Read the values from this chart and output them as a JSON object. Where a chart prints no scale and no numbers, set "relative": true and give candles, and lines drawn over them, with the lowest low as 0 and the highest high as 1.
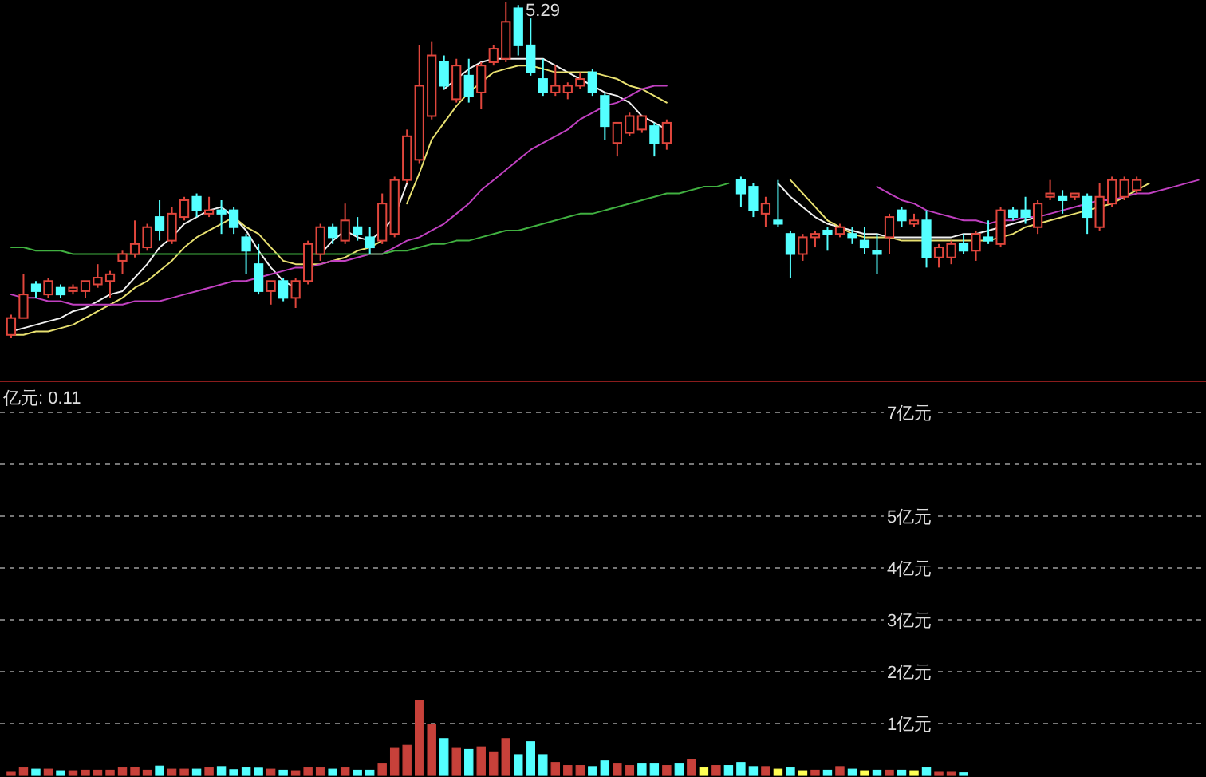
{
  "chart_data": [
    {
      "type": "candlestick",
      "relative": true,
      "categories": [
        null,
        null,
        null,
        null,
        null,
        null,
        null,
        null,
        null,
        null,
        null,
        null,
        null,
        null,
        null,
        null,
        null,
        null,
        null,
        null,
        null,
        null,
        null,
        null,
        null,
        null,
        null,
        null,
        null,
        null,
        null,
        null,
        null,
        null,
        null,
        null,
        null,
        null,
        null,
        null,
        null,
        null,
        null,
        null,
        null,
        null,
        null,
        null,
        null,
        null,
        null,
        null,
        null,
        null,
        null,
        null,
        null,
        null,
        null,
        null,
        null,
        null,
        null,
        null,
        null,
        null,
        null,
        null,
        null,
        null,
        null,
        null,
        null,
        null,
        null,
        null,
        null,
        null,
        null,
        null,
        null,
        null,
        null,
        null,
        null,
        null,
        null,
        null,
        null,
        null,
        null,
        null,
        null,
        null,
        null,
        null,
        null
      ],
      "ohlc": [
        [
          0.01,
          0.07,
          0,
          0.06
        ],
        [
          0.06,
          0.19,
          0.06,
          0.13
        ],
        [
          0.16,
          0.17,
          0.12,
          0.14
        ],
        [
          0.13,
          0.18,
          0.12,
          0.17
        ],
        [
          0.15,
          0.16,
          0.12,
          0.13
        ],
        [
          0.14,
          0.16,
          0.13,
          0.15
        ],
        [
          0.14,
          0.17,
          0.12,
          0.17
        ],
        [
          0.16,
          0.22,
          0.15,
          0.18
        ],
        [
          0.17,
          0.2,
          0.12,
          0.19
        ],
        [
          0.23,
          0.26,
          0.19,
          0.25
        ],
        [
          0.25,
          0.35,
          0.24,
          0.28
        ],
        [
          0.27,
          0.34,
          0.26,
          0.33
        ],
        [
          0.36,
          0.41,
          0.29,
          0.32
        ],
        [
          0.29,
          0.39,
          0.28,
          0.37
        ],
        [
          0.36,
          0.42,
          0.35,
          0.41
        ],
        [
          0.42,
          0.43,
          0.36,
          0.38
        ],
        [
          0.37,
          0.42,
          0.36,
          0.38
        ],
        [
          0.38,
          0.41,
          0.31,
          0.37
        ],
        [
          0.38,
          0.39,
          0.31,
          0.33
        ],
        [
          0.3,
          0.31,
          0.19,
          0.26
        ],
        [
          0.22,
          0.28,
          0.13,
          0.14
        ],
        [
          0.14,
          0.17,
          0.1,
          0.17
        ],
        [
          0.17,
          0.18,
          0.11,
          0.12
        ],
        [
          0.12,
          0.18,
          0.09,
          0.17
        ],
        [
          0.17,
          0.29,
          0.16,
          0.28
        ],
        [
          0.25,
          0.34,
          0.23,
          0.33
        ],
        [
          0.33,
          0.34,
          0.28,
          0.3
        ],
        [
          0.29,
          0.4,
          0.28,
          0.35
        ],
        [
          0.33,
          0.36,
          0.29,
          0.31
        ],
        [
          0.3,
          0.33,
          0.25,
          0.27
        ],
        [
          0.29,
          0.43,
          0.28,
          0.4
        ],
        [
          0.31,
          0.48,
          0.3,
          0.47
        ],
        [
          0.47,
          0.62,
          0.46,
          0.6
        ],
        [
          0.53,
          0.87,
          0.52,
          0.75
        ],
        [
          0.66,
          0.88,
          0.65,
          0.84
        ],
        [
          0.82,
          0.84,
          0.74,
          0.75
        ],
        [
          0.71,
          0.83,
          0.7,
          0.81
        ],
        [
          0.78,
          0.83,
          0.7,
          0.72
        ],
        [
          0.73,
          0.82,
          0.68,
          0.81
        ],
        [
          0.82,
          0.87,
          0.81,
          0.86
        ],
        [
          0.83,
          1,
          0.82,
          0.94
        ],
        [
          0.98,
          0.99,
          0.84,
          0.87
        ],
        [
          0.87,
          0.95,
          0.78,
          0.79
        ],
        [
          0.77,
          0.83,
          0.72,
          0.73
        ],
        [
          0.73,
          0.81,
          0.72,
          0.75
        ],
        [
          0.73,
          0.76,
          0.71,
          0.75
        ],
        [
          0.75,
          0.79,
          0.74,
          0.77
        ],
        [
          0.79,
          0.8,
          0.72,
          0.73
        ],
        [
          0.72,
          0.73,
          0.59,
          0.63
        ],
        [
          0.58,
          0.64,
          0.54,
          0.64
        ],
        [
          0.61,
          0.67,
          0.6,
          0.66
        ],
        [
          0.62,
          0.66,
          0.61,
          0.66
        ],
        [
          0.63,
          0.64,
          0.54,
          0.58
        ],
        [
          0.58,
          0.65,
          0.56,
          0.64
        ],
        null,
        null,
        null,
        null,
        null,
        [
          0.47,
          0.48,
          0.39,
          0.43
        ],
        [
          0.45,
          0.46,
          0.36,
          0.38
        ],
        [
          0.37,
          0.42,
          0.33,
          0.4
        ],
        [
          0.35,
          0.47,
          0.33,
          0.34
        ],
        [
          0.31,
          0.32,
          0.18,
          0.25
        ],
        [
          0.25,
          0.31,
          0.23,
          0.3
        ],
        [
          0.3,
          0.32,
          0.27,
          0.31
        ],
        [
          0.32,
          0.33,
          0.26,
          0.31
        ],
        [
          0.31,
          0.34,
          0.3,
          0.33
        ],
        [
          0.31,
          0.33,
          0.28,
          0.3
        ],
        [
          0.29,
          0.33,
          0.25,
          0.27
        ],
        [
          0.26,
          0.31,
          0.19,
          0.25
        ],
        [
          0.3,
          0.37,
          0.25,
          0.36
        ],
        [
          0.38,
          0.39,
          0.33,
          0.35
        ],
        [
          0.34,
          0.37,
          0.33,
          0.35
        ],
        [
          0.35,
          0.38,
          0.21,
          0.24
        ],
        [
          0.24,
          0.28,
          0.21,
          0.27
        ],
        [
          0.24,
          0.29,
          0.22,
          0.28
        ],
        [
          0.28,
          0.31,
          0.25,
          0.26
        ],
        [
          0.26,
          0.32,
          0.23,
          0.31
        ],
        [
          0.3,
          0.35,
          0.28,
          0.29
        ],
        [
          0.28,
          0.39,
          0.27,
          0.38
        ],
        [
          0.38,
          0.39,
          0.35,
          0.36
        ],
        [
          0.38,
          0.42,
          0.34,
          0.36
        ],
        [
          0.33,
          0.41,
          0.31,
          0.4
        ],
        [
          0.42,
          0.47,
          0.41,
          0.43
        ],
        [
          0.42,
          0.44,
          0.37,
          0.41
        ],
        [
          0.42,
          0.43,
          0.41,
          0.43
        ],
        [
          0.42,
          0.43,
          0.31,
          0.36
        ],
        [
          0.33,
          0.46,
          0.32,
          0.42
        ],
        [
          0.4,
          0.48,
          0.39,
          0.47
        ],
        [
          0.42,
          0.48,
          0.41,
          0.47
        ],
        [
          0.44,
          0.48,
          0.43,
          0.47
        ],
        null,
        null,
        null,
        null,
        null
      ],
      "colors": [
        "#e0463c",
        "#e0463c",
        "#54ffff",
        "#e0463c",
        "#54ffff",
        "#e0463c",
        "#e0463c",
        "#e0463c",
        "#e0463c",
        "#e0463c",
        "#e0463c",
        "#e0463c",
        "#54ffff",
        "#e0463c",
        "#e0463c",
        "#54ffff",
        "#e0463c",
        "#54ffff",
        "#54ffff",
        "#54ffff",
        "#54ffff",
        "#e0463c",
        "#54ffff",
        "#e0463c",
        "#e0463c",
        "#e0463c",
        "#54ffff",
        "#e0463c",
        "#54ffff",
        "#54ffff",
        "#e0463c",
        "#e0463c",
        "#e0463c",
        "#e0463c",
        "#e0463c",
        "#54ffff",
        "#e0463c",
        "#54ffff",
        "#e0463c",
        "#e0463c",
        "#e0463c",
        "#54ffff",
        "#54ffff",
        "#54ffff",
        "#e0463c",
        "#e0463c",
        "#e0463c",
        "#54ffff",
        "#54ffff",
        "#e0463c",
        "#e0463c",
        "#e0463c",
        "#54ffff",
        "#e0463c",
        null,
        null,
        null,
        null,
        null,
        "#54ffff",
        "#54ffff",
        "#e0463c",
        "#54ffff",
        "#54ffff",
        "#e0463c",
        "#e0463c",
        "#54ffff",
        "#e0463c",
        "#54ffff",
        "#54ffff",
        "#54ffff",
        "#e0463c",
        "#54ffff",
        "#e0463c",
        "#54ffff",
        "#e0463c",
        "#e0463c",
        "#54ffff",
        "#e0463c",
        "#54ffff",
        "#e0463c",
        "#54ffff",
        "#54ffff",
        "#e0463c",
        "#e0463c",
        "#54ffff",
        "#e0463c",
        "#54ffff",
        "#e0463c",
        "#e0463c",
        "#e0463c",
        "#e0463c",
        null,
        null,
        null,
        null,
        null
      ],
      "series": [
        {
          "type": "line",
          "color": "#f0f0f0",
          "values": [
            0.02,
            0.03,
            0.04,
            0.05,
            0.06,
            0.08,
            0.09,
            0.11,
            0.13,
            0.14,
            0.18,
            0.22,
            0.27,
            0.3,
            0.34,
            0.36,
            0.38,
            0.39,
            0.36,
            0.32,
            0.26,
            0.21,
            0.17,
            0.15,
            null,
            0.25,
            0.29,
            0.32,
            0.3,
            0.29,
            0.32,
            0.36,
            0.46,
            null,
            null,
            0.74,
            0.77,
            0.8,
            0.82,
            0.83,
            0.83,
            0.83,
            0.83,
            0.83,
            0.81,
            0.79,
            0.77,
            0.75,
            0.73,
            0.72,
            0.7,
            0.66,
            0.64,
            0.62,
            null,
            null,
            null,
            null,
            null,
            null,
            null,
            null,
            0.46,
            0.42,
            0.39,
            0.36,
            0.34,
            0.33,
            0.32,
            0.31,
            0.31,
            0.3,
            0.3,
            0.3,
            0.3,
            0.3,
            0.3,
            0.31,
            0.31,
            0.32,
            0.33,
            0.34,
            0.35,
            0.36,
            null,
            null,
            null,
            null,
            null,
            null,
            null,
            null,
            null,
            null,
            null,
            null,
            null
          ]
        },
        {
          "type": "line",
          "color": "#e8e070",
          "values": [
            0.01,
            0.01,
            0.02,
            0.02,
            0.03,
            0.04,
            0.06,
            0.08,
            0.1,
            0.12,
            0.15,
            0.17,
            0.2,
            0.23,
            0.27,
            0.3,
            0.32,
            0.34,
            0.36,
            0.33,
            0.31,
            0.27,
            0.23,
            0.22,
            0.22,
            0.22,
            0.23,
            0.24,
            0.26,
            0.27,
            0.29,
            null,
            0.4,
            0.49,
            0.59,
            0.64,
            0.69,
            0.73,
            0.76,
            0.79,
            0.8,
            0.81,
            0.81,
            0.8,
            0.79,
            0.79,
            0.79,
            0.79,
            0.78,
            0.77,
            0.75,
            0.74,
            0.72,
            0.7,
            null,
            null,
            null,
            null,
            null,
            null,
            null,
            null,
            null,
            0.47,
            0.43,
            0.39,
            0.35,
            0.33,
            0.31,
            0.3,
            0.3,
            0.3,
            0.29,
            0.29,
            0.29,
            0.29,
            0.29,
            0.29,
            0.29,
            0.29,
            0.3,
            0.31,
            0.33,
            0.34,
            0.35,
            0.36,
            0.37,
            0.38,
            0.39,
            0.4,
            0.42,
            0.44,
            0.46,
            null,
            null,
            null,
            null
          ]
        },
        {
          "type": "line",
          "color": "#c040c0",
          "values": [
            0.13,
            0.12,
            0.12,
            0.11,
            0.11,
            0.1,
            0.1,
            0.1,
            0.1,
            0.1,
            0.11,
            0.11,
            0.11,
            0.12,
            0.13,
            0.14,
            0.15,
            0.16,
            0.17,
            0.17,
            0.18,
            0.19,
            0.2,
            0.21,
            0.21,
            0.22,
            0.23,
            0.23,
            0.24,
            0.25,
            0.25,
            0.27,
            0.29,
            0.3,
            0.32,
            0.34,
            0.37,
            0.4,
            0.44,
            0.47,
            0.5,
            0.53,
            0.56,
            0.58,
            0.6,
            0.62,
            0.65,
            0.67,
            0.69,
            0.7,
            0.72,
            0.74,
            0.75,
            0.75,
            null,
            null,
            null,
            null,
            null,
            null,
            null,
            null,
            null,
            null,
            null,
            null,
            null,
            null,
            null,
            null,
            0.45,
            0.43,
            0.41,
            0.4,
            0.38,
            0.37,
            0.36,
            0.35,
            0.35,
            0.34,
            0.35,
            0.35,
            0.36,
            0.36,
            0.37,
            0.38,
            0.39,
            0.4,
            0.41,
            0.41,
            0.42,
            0.43,
            0.43,
            0.44,
            0.45,
            0.46,
            0.47
          ]
        },
        {
          "type": "line",
          "color": "#40b040",
          "values": [
            0.27,
            0.27,
            0.26,
            0.26,
            0.26,
            0.25,
            0.25,
            0.25,
            0.25,
            0.25,
            0.25,
            0.25,
            0.25,
            0.25,
            0.25,
            0.25,
            0.25,
            0.25,
            0.25,
            0.25,
            0.25,
            0.25,
            0.25,
            0.25,
            0.25,
            0.25,
            0.25,
            0.25,
            0.25,
            0.25,
            0.25,
            0.26,
            0.26,
            0.27,
            0.28,
            0.28,
            0.29,
            0.29,
            0.3,
            0.31,
            0.32,
            0.32,
            0.33,
            0.34,
            0.35,
            0.36,
            0.37,
            0.37,
            0.38,
            0.39,
            0.4,
            0.41,
            0.42,
            0.43,
            0.43,
            0.44,
            0.45,
            0.45,
            0.46,
            null,
            null,
            null,
            null,
            null,
            null,
            null,
            null,
            null,
            null,
            null,
            null,
            null,
            null,
            null,
            null,
            null,
            null,
            null,
            null,
            null,
            null,
            null,
            null,
            null,
            null,
            null,
            null,
            null,
            null,
            null,
            null,
            null,
            null,
            null,
            null,
            null,
            null
          ]
        }
      ],
      "annotations": [
        "5.29"
      ]
    },
    {
      "type": "bar",
      "categories": [
        null,
        null,
        null,
        null,
        null,
        null,
        null,
        null,
        null,
        null,
        null,
        null,
        null,
        null,
        null,
        null,
        null,
        null,
        null,
        null,
        null,
        null,
        null,
        null,
        null,
        null,
        null,
        null,
        null,
        null,
        null,
        null,
        null,
        null,
        null,
        null,
        null,
        null,
        null,
        null,
        null,
        null,
        null,
        null,
        null,
        null,
        null,
        null,
        null,
        null,
        null,
        null,
        null,
        null,
        null,
        null,
        null,
        null,
        null,
        null,
        null,
        null,
        null,
        null,
        null,
        null,
        null,
        null,
        null,
        null,
        null,
        null,
        null,
        null,
        null,
        null,
        null,
        null,
        null,
        null,
        null,
        null,
        null,
        null,
        null,
        null,
        null,
        null,
        null,
        null,
        null,
        null,
        null,
        null,
        null,
        null,
        null
      ],
      "values": [
        0.06,
        0.15,
        0.12,
        0.12,
        0.09,
        0.09,
        0.1,
        0.1,
        0.1,
        0.15,
        0.16,
        0.1,
        0.18,
        0.12,
        0.12,
        0.12,
        0.15,
        0.17,
        0.11,
        0.15,
        0.14,
        0.12,
        0.1,
        0.09,
        0.15,
        0.15,
        0.12,
        0.15,
        0.1,
        0.1,
        0.22,
        0.52,
        0.58,
        1.45,
        0.98,
        0.71,
        0.52,
        0.5,
        0.55,
        0.44,
        0.71,
        0.4,
        0.65,
        0.4,
        0.25,
        0.19,
        0.19,
        0.17,
        0.28,
        0.22,
        0.19,
        0.22,
        0.22,
        0.19,
        0.22,
        0.3,
        0.15,
        0.19,
        0.19,
        0.25,
        0.17,
        0.17,
        0.12,
        0.15,
        0.09,
        0.1,
        0.1,
        0.17,
        0.12,
        0.09,
        0.1,
        0.1,
        0.1,
        0.09,
        0.15,
        0.06,
        0.06,
        0.05,
        null,
        null,
        null,
        null,
        null,
        null,
        null,
        null,
        null,
        null,
        null,
        null,
        null,
        null,
        null,
        null,
        null,
        null,
        null
      ],
      "colors": [
        "#c8413a",
        "#c8413a",
        "#54ffff",
        "#c8413a",
        "#54ffff",
        "#c8413a",
        "#c8413a",
        "#c8413a",
        "#c8413a",
        "#c8413a",
        "#c8413a",
        "#c8413a",
        "#54ffff",
        "#c8413a",
        "#c8413a",
        "#54ffff",
        "#c8413a",
        "#54ffff",
        "#54ffff",
        "#54ffff",
        "#54ffff",
        "#c8413a",
        "#54ffff",
        "#c8413a",
        "#c8413a",
        "#c8413a",
        "#54ffff",
        "#c8413a",
        "#54ffff",
        "#54ffff",
        "#c8413a",
        "#c8413a",
        "#c8413a",
        "#c8413a",
        "#c8413a",
        "#54ffff",
        "#c8413a",
        "#54ffff",
        "#c8413a",
        "#c8413a",
        "#c8413a",
        "#54ffff",
        "#54ffff",
        "#54ffff",
        "#c8413a",
        "#c8413a",
        "#c8413a",
        "#54ffff",
        "#54ffff",
        "#c8413a",
        "#c8413a",
        "#54ffff",
        "#54ffff",
        "#c8413a",
        "#54ffff",
        "#c8413a",
        "#ffff54",
        "#c8413a",
        "#54ffff",
        "#54ffff",
        "#54ffff",
        "#c8413a",
        "#ffff54",
        "#54ffff",
        "#ffff54",
        "#c8413a",
        "#54ffff",
        "#c8413a",
        "#54ffff",
        "#ffff54",
        "#54ffff",
        "#c8413a",
        "#54ffff",
        "#ffff54",
        "#54ffff",
        "#c8413a",
        "#c8413a",
        "#54ffff",
        null,
        null,
        null,
        null,
        null,
        null,
        null,
        null,
        null,
        null,
        null,
        null,
        null,
        null,
        null,
        null,
        null,
        null,
        null
      ],
      "ylim": [
        0,
        7.6
      ],
      "yticks": [
        {
          "value": 1,
          "label": "1亿元"
        },
        {
          "value": 2,
          "label": "2亿元"
        },
        {
          "value": 3,
          "label": "3亿元"
        },
        {
          "value": 4,
          "label": "4亿元"
        },
        {
          "value": 5,
          "label": "5亿元"
        },
        {
          "value": 6,
          "label": null
        },
        {
          "value": 7,
          "label": "7亿元"
        }
      ],
      "grid": "y",
      "annotations": [
        "亿元: 0.11"
      ]
    }
  ]
}
